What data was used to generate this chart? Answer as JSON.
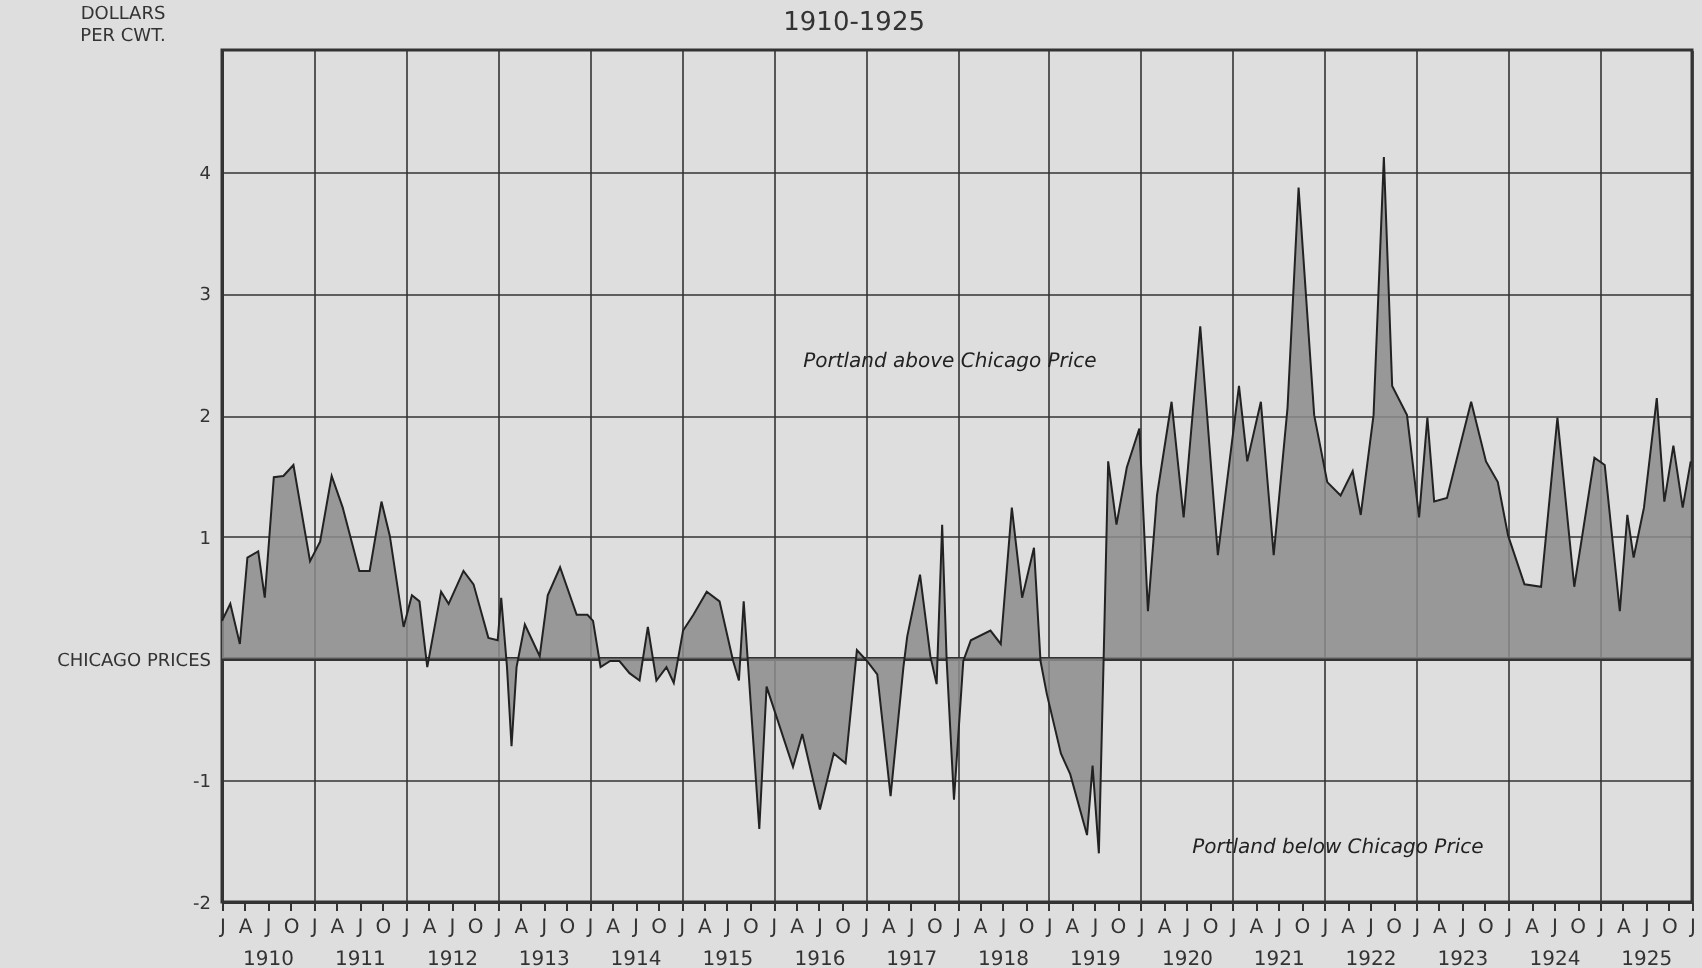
{
  "chart_data": {
    "type": "area",
    "title": "1910-1925",
    "ylabel": "DOLLARS PER CWT.",
    "x": [
      "1910-01-01",
      "1910-02-03",
      "1910-03-13",
      "1910-04-12",
      "1910-05-25",
      "1910-06-20",
      "1910-07-26",
      "1910-09-02",
      "1910-10-12",
      "1910-12-17",
      "1911-01-26",
      "1911-03-13",
      "1911-04-26",
      "1911-07-01",
      "1911-08-11",
      "1911-09-27",
      "1911-10-30",
      "1911-12-24",
      "1912-01-26",
      "1912-02-25",
      "1912-03-27",
      "1912-05-21",
      "1912-06-20",
      "1912-08-18",
      "1912-09-27",
      "1912-11-25",
      "1913-01-01",
      "1913-01-15",
      "1913-02-07",
      "1913-02-25",
      "1913-03-17",
      "1913-04-19",
      "1913-06-17",
      "1913-07-19",
      "1913-09-06",
      "1913-11-11",
      "1913-12-24",
      "1914-01-15",
      "1914-02-14",
      "1914-03-24",
      "1914-04-30",
      "1914-06-09",
      "1914-07-19",
      "1914-08-21",
      "1914-09-24",
      "1914-11-03",
      "1914-12-02",
      "1915-01-08",
      "1915-02-18",
      "1915-04-12",
      "1915-06-02",
      "1915-07-26",
      "1915-08-18",
      "1915-09-06",
      "1915-09-24",
      "1915-11-07",
      "1915-12-06",
      "1916-03-20",
      "1916-04-26",
      "1916-07-05",
      "1916-08-29",
      "1916-10-15",
      "1916-11-29",
      "1917-01-08",
      "1917-02-18",
      "1917-04-12",
      "1917-06-02",
      "1917-06-17",
      "1917-08-07",
      "1917-09-17",
      "1917-10-12",
      "1917-11-03",
      "1917-11-21",
      "1917-12-20",
      "1918-01-26",
      "1918-02-25",
      "1918-05-14",
      "1918-06-24",
      "1918-08-07",
      "1918-09-17",
      "1918-11-03",
      "1918-11-29",
      "1918-12-24",
      "1919-02-18",
      "1919-03-27",
      "1919-06-02",
      "1919-06-24",
      "1919-07-19",
      "1919-08-07",
      "1919-08-25",
      "1919-09-27",
      "1919-11-07",
      "1919-12-27",
      "1920-01-30",
      "1920-03-06",
      "1920-05-03",
      "1920-06-20",
      "1920-08-25",
      "1920-11-03",
      "1921-01-26",
      "1921-02-28",
      "1921-04-23",
      "1921-06-13",
      "1921-08-07",
      "1921-09-20",
      "1921-11-21",
      "1922-01-12",
      "1922-03-06",
      "1922-04-23",
      "1922-05-25",
      "1922-07-15",
      "1922-08-25",
      "1922-09-27",
      "1922-11-25",
      "1923-01-12",
      "1923-02-14",
      "1923-03-13",
      "1923-05-03",
      "1923-08-07",
      "1923-10-05",
      "1923-11-21",
      "1924-01-01",
      "1924-03-06",
      "1924-05-11",
      "1924-07-15",
      "1924-09-20",
      "1924-12-09",
      "1925-01-19",
      "1925-03-20",
      "1925-04-19",
      "1925-05-14",
      "1925-06-24",
      "1925-08-14",
      "1925-09-13",
      "1925-10-19",
      "1925-11-25",
      "1925-12-27"
    ],
    "values": [
      0.31,
      0.45,
      0.12,
      0.83,
      0.88,
      0.5,
      1.49,
      1.5,
      1.59,
      0.8,
      0.96,
      1.5,
      1.24,
      0.72,
      0.72,
      1.29,
      1.01,
      0.26,
      0.52,
      0.47,
      -0.07,
      0.55,
      0.45,
      0.72,
      0.61,
      0.17,
      0.15,
      0.5,
      -0.07,
      -0.72,
      -0.07,
      0.28,
      0.02,
      0.52,
      0.75,
      0.36,
      0.36,
      0.31,
      -0.07,
      -0.02,
      -0.02,
      -0.12,
      -0.18,
      0.26,
      -0.18,
      -0.07,
      -0.2,
      0.23,
      0.36,
      0.55,
      0.47,
      -0.02,
      -0.18,
      0.47,
      -0.07,
      -1.4,
      -0.23,
      -0.89,
      -0.62,
      -1.24,
      -0.78,
      -0.86,
      0.07,
      -0.02,
      -0.13,
      -1.13,
      -0.07,
      0.18,
      0.69,
      0.02,
      -0.21,
      1.1,
      -0.02,
      -1.16,
      -0.02,
      0.15,
      0.23,
      0.12,
      1.24,
      0.5,
      0.91,
      -0.02,
      -0.29,
      -0.78,
      -0.95,
      -1.45,
      -0.88,
      -1.6,
      0.0,
      1.62,
      1.1,
      1.57,
      1.89,
      0.39,
      1.34,
      2.11,
      1.16,
      2.73,
      0.85,
      2.24,
      1.62,
      2.11,
      0.85,
      2.06,
      3.87,
      2.0,
      1.45,
      1.34,
      1.54,
      1.18,
      2.0,
      4.12,
      2.24,
      2.0,
      1.16,
      1.98,
      1.29,
      1.32,
      2.11,
      1.62,
      1.45,
      1.01,
      0.61,
      0.59,
      1.98,
      0.59,
      1.65,
      1.59,
      0.39,
      1.18,
      0.83,
      1.24,
      2.14,
      1.29,
      1.75,
      1.24,
      1.62
    ],
    "color": "#8c8c8c",
    "xlim": [
      "1910-01-01",
      "1926-01-01"
    ],
    "xticks": [
      {
        "value": "1910-01",
        "label": "J"
      },
      {
        "value": "1910-04",
        "label": "A"
      },
      {
        "value": "1910-07",
        "label": "J\n1910"
      },
      {
        "value": "1910-10",
        "label": "O"
      },
      {
        "value": "1911-01",
        "label": "J"
      },
      {
        "value": "1911-04",
        "label": "A"
      },
      {
        "value": "1911-07",
        "label": "J\n1911"
      },
      {
        "value": "1911-10",
        "label": "O"
      },
      {
        "value": "1912-01",
        "label": "J"
      },
      {
        "value": "1912-04",
        "label": "A"
      },
      {
        "value": "1912-07",
        "label": "J\n1912"
      },
      {
        "value": "1912-10",
        "label": "O"
      },
      {
        "value": "1913-01",
        "label": "J"
      },
      {
        "value": "1913-04",
        "label": "A"
      },
      {
        "value": "1913-07",
        "label": "J\n1913"
      },
      {
        "value": "1913-10",
        "label": "O"
      },
      {
        "value": "1914-01",
        "label": "J"
      },
      {
        "value": "1914-04",
        "label": "A"
      },
      {
        "value": "1914-07",
        "label": "J\n1914"
      },
      {
        "value": "1914-10",
        "label": "O"
      },
      {
        "value": "1915-01",
        "label": "J"
      },
      {
        "value": "1915-04",
        "label": "A"
      },
      {
        "value": "1915-07",
        "label": "J\n1915"
      },
      {
        "value": "1915-10",
        "label": "O"
      },
      {
        "value": "1916-01",
        "label": "J"
      },
      {
        "value": "1916-04",
        "label": "A"
      },
      {
        "value": "1916-07",
        "label": "J\n1916"
      },
      {
        "value": "1916-10",
        "label": "O"
      },
      {
        "value": "1917-01",
        "label": "J"
      },
      {
        "value": "1917-04",
        "label": "A"
      },
      {
        "value": "1917-07",
        "label": "J\n1917"
      },
      {
        "value": "1917-10",
        "label": "O"
      },
      {
        "value": "1918-01",
        "label": "J"
      },
      {
        "value": "1918-04",
        "label": "A"
      },
      {
        "value": "1918-07",
        "label": "J\n1918"
      },
      {
        "value": "1918-10",
        "label": "O"
      },
      {
        "value": "1919-01",
        "label": "J"
      },
      {
        "value": "1919-04",
        "label": "A"
      },
      {
        "value": "1919-07",
        "label": "J\n1919"
      },
      {
        "value": "1919-10",
        "label": "O"
      },
      {
        "value": "1920-01",
        "label": "J"
      },
      {
        "value": "1920-04",
        "label": "A"
      },
      {
        "value": "1920-07",
        "label": "J\n1920"
      },
      {
        "value": "1920-10",
        "label": "O"
      },
      {
        "value": "1921-01",
        "label": "J"
      },
      {
        "value": "1921-04",
        "label": "A"
      },
      {
        "value": "1921-07",
        "label": "J\n1921"
      },
      {
        "value": "1921-10",
        "label": "O"
      },
      {
        "value": "1922-01",
        "label": "J"
      },
      {
        "value": "1922-04",
        "label": "A"
      },
      {
        "value": "1922-07",
        "label": "J\n1922"
      },
      {
        "value": "1922-10",
        "label": "O"
      },
      {
        "value": "1923-01",
        "label": "J"
      },
      {
        "value": "1923-04",
        "label": "A"
      },
      {
        "value": "1923-07",
        "label": "J\n1923"
      },
      {
        "value": "1923-10",
        "label": "O"
      },
      {
        "value": "1924-01",
        "label": "J"
      },
      {
        "value": "1924-04",
        "label": "A"
      },
      {
        "value": "1924-07",
        "label": "J\n1924"
      },
      {
        "value": "1924-10",
        "label": "O"
      },
      {
        "value": "1925-01",
        "label": "J"
      },
      {
        "value": "1925-04",
        "label": "A"
      },
      {
        "value": "1925-07",
        "label": "J\n1925"
      },
      {
        "value": "1925-10",
        "label": "O"
      },
      {
        "value": "1926-01",
        "label": "J"
      }
    ],
    "ylim": [
      -2,
      5
    ],
    "yticks": [
      -2,
      -1,
      {
        "value": 0,
        "label": "CHICAGO PRICES"
      },
      1,
      2,
      3,
      4
    ],
    "grid": true,
    "annotations": [
      "Portland above Chicago Price",
      "Portland below Chicago Price"
    ]
  }
}
